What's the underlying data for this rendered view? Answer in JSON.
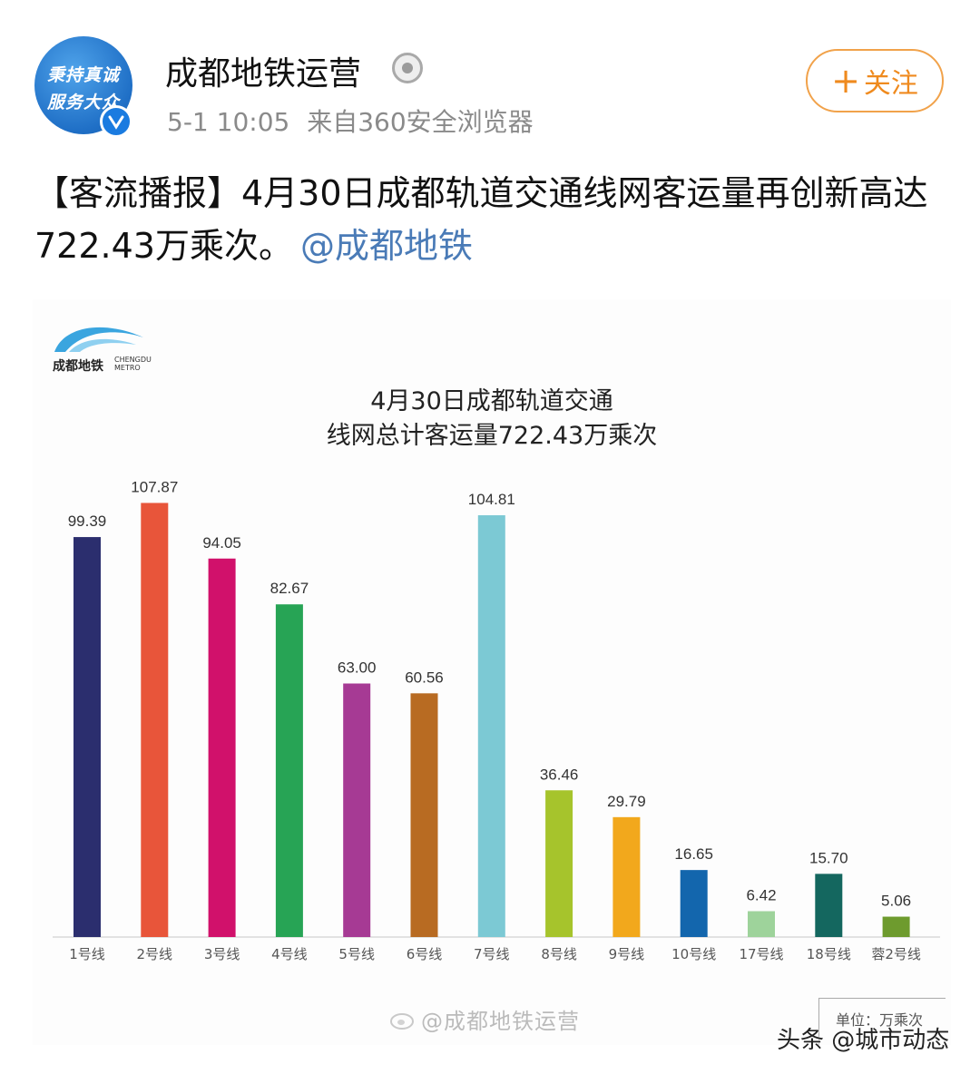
{
  "account": {
    "avatar_text_line1": "秉持真诚",
    "avatar_text_line2": "服务大众",
    "name": "成都地铁运营",
    "time": "5-1 10:05",
    "via": "来自360安全浏览器",
    "follow_label": "关注"
  },
  "post": {
    "text": "【客流播报】4月30日成都轨道交通线网客运量再创新高达722.43万乘次。",
    "mention": "@成都地铁"
  },
  "chart_card": {
    "logo_cn": "成都地铁",
    "logo_en_line1": "CHENGDU",
    "logo_en_line2": "METRO",
    "unit_label": "单位：万乘次",
    "watermark": "@成都地铁运营"
  },
  "chart_data": {
    "type": "bar",
    "title_line1": "4月30日成都轨道交通",
    "title_line2": "线网总计客运量722.43万乘次",
    "categories": [
      "1号线",
      "2号线",
      "3号线",
      "4号线",
      "5号线",
      "6号线",
      "7号线",
      "8号线",
      "9号线",
      "10号线",
      "17号线",
      "18号线",
      "蓉2号线"
    ],
    "values": [
      99.39,
      107.87,
      94.05,
      82.67,
      63.0,
      60.56,
      104.81,
      36.46,
      29.79,
      16.65,
      6.42,
      15.7,
      5.06
    ],
    "value_labels": [
      "99.39",
      "107.87",
      "94.05",
      "82.67",
      "63.00",
      "60.56",
      "104.81",
      "36.46",
      "29.79",
      "16.65",
      "6.42",
      "15.70",
      "5.06"
    ],
    "colors": [
      "#2b2e6e",
      "#e8553a",
      "#d1116b",
      "#27a455",
      "#a63a94",
      "#b86b22",
      "#7cc9d4",
      "#a6c42c",
      "#f2a81c",
      "#1366ad",
      "#9ed39b",
      "#14675f",
      "#6e9b2e"
    ],
    "ylim": [
      0,
      110
    ],
    "grid": false,
    "legend": "none"
  },
  "footer": {
    "source": "头条 @城市动态"
  }
}
